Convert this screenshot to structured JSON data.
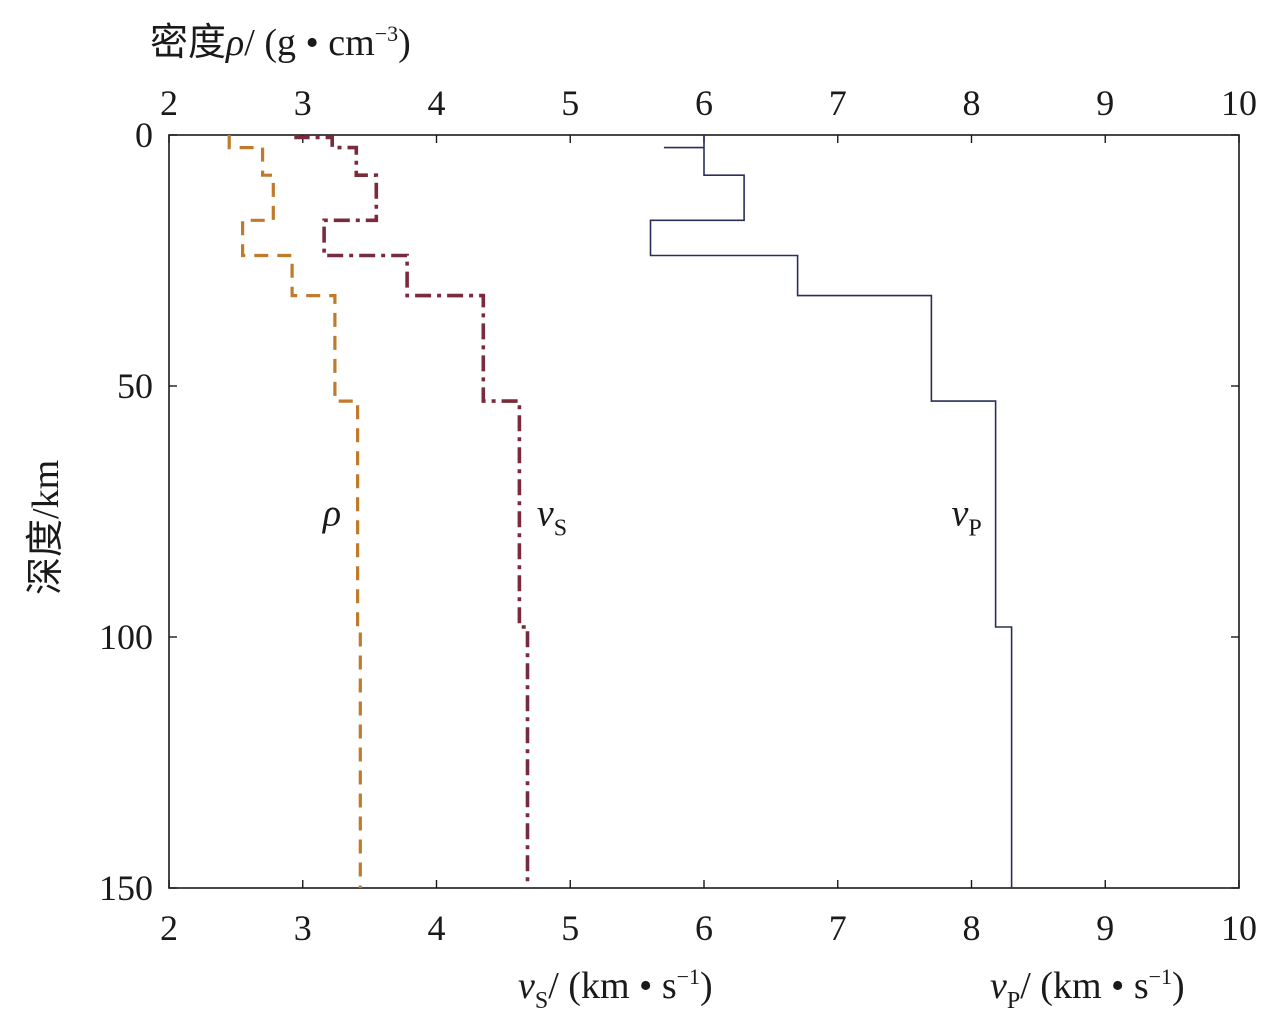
{
  "chart_data": {
    "type": "line",
    "orientation": "depth-profile",
    "yaxis": {
      "label_main": "深度",
      "label_unit": "/km",
      "range": [
        0,
        150
      ],
      "inverted": true,
      "ticks": [
        "0",
        "50",
        "100",
        "150"
      ]
    },
    "xaxis_top": {
      "label_prefix": "密度",
      "label_symbol": "ρ",
      "label_unit_open": "/ (g",
      "label_unit_mid": "cm",
      "label_unit_exp": "−3",
      "label_unit_close": ")",
      "range": [
        2,
        10
      ],
      "ticks": [
        "2",
        "3",
        "4",
        "5",
        "6",
        "7",
        "8",
        "9",
        "10"
      ]
    },
    "xaxis_bottom": {
      "range": [
        2,
        10
      ],
      "ticks": [
        "2",
        "3",
        "4",
        "5",
        "6",
        "7",
        "8",
        "9",
        "10"
      ],
      "label_vs": {
        "symbol": "v",
        "subscript": "S",
        "unit_open": "/ (km",
        "unit_mid": "s",
        "unit_exp": "−1",
        "unit_close": ")"
      },
      "label_vp": {
        "symbol": "v",
        "subscript": "P",
        "unit_open": "/ (km",
        "unit_mid": "s",
        "unit_exp": "−1",
        "unit_close": ")"
      }
    },
    "series": [
      {
        "name": "ρ",
        "label_symbol": "ρ",
        "label_sub": "",
        "color": "#c07a2c",
        "style": "dashed",
        "label_at": {
          "x": 3.15,
          "depth": 75
        },
        "layers": [
          {
            "top": 0,
            "value": 2.45
          },
          {
            "top": 2.5,
            "value": 2.7
          },
          {
            "top": 8,
            "value": 2.78
          },
          {
            "top": 17,
            "value": 2.55
          },
          {
            "top": 24,
            "value": 2.92
          },
          {
            "top": 32,
            "value": 3.24
          },
          {
            "top": 53,
            "value": 3.41
          },
          {
            "top": 98,
            "value": 3.43
          }
        ],
        "bottom": 150
      },
      {
        "name": "vS",
        "label_symbol": "v",
        "label_sub": "S",
        "color": "#7a2a3a",
        "style": "dashdot",
        "label_at": {
          "x": 4.75,
          "depth": 75
        },
        "layers": [
          {
            "top": 0,
            "value": 2.95
          },
          {
            "top": 0.5,
            "value": 3.22
          },
          {
            "top": 2.5,
            "value": 3.4
          },
          {
            "top": 8,
            "value": 3.55
          },
          {
            "top": 17,
            "value": 3.16
          },
          {
            "top": 24,
            "value": 3.78
          },
          {
            "top": 32,
            "value": 4.35
          },
          {
            "top": 53,
            "value": 4.62
          },
          {
            "top": 98,
            "value": 4.68
          }
        ],
        "bottom": 150
      },
      {
        "name": "vP",
        "label_symbol": "v",
        "label_sub": "P",
        "color": "#2a2f5a",
        "style": "solid",
        "label_at": {
          "x": 7.85,
          "depth": 75
        },
        "layers": [
          {
            "top": 0,
            "value": 6.0
          },
          {
            "top": 2.5,
            "value": 5.7
          },
          {
            "top": 2.5,
            "value": 6.0
          },
          {
            "top": 8,
            "value": 6.3
          },
          {
            "top": 17,
            "value": 5.6
          },
          {
            "top": 24,
            "value": 6.7
          },
          {
            "top": 32,
            "value": 7.7
          },
          {
            "top": 53,
            "value": 8.18
          },
          {
            "top": 98,
            "value": 8.3
          }
        ],
        "bottom": 150
      }
    ]
  }
}
